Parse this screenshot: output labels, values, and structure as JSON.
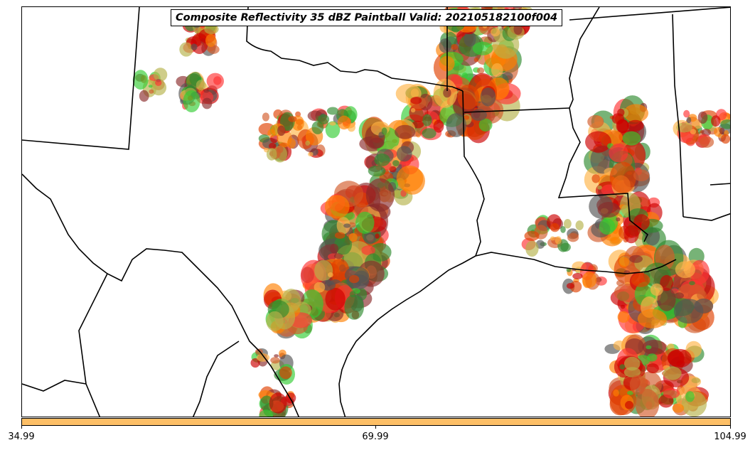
{
  "title": "Composite Reflectivity 35 dBZ Paintball Valid: 202105182100f004",
  "colorbar": {
    "color": "#fdbf66",
    "ticks": [
      "34.99",
      "69.99",
      "104.99"
    ]
  },
  "colors": {
    "border": "#000000",
    "paint": [
      "#ff8000",
      "#e04000",
      "#cc0000",
      "#ff3333",
      "#33cc33",
      "#2e8b2e",
      "#8b2b2b",
      "#b5b24a",
      "#ffb347",
      "#d25a2a",
      "#555555"
    ]
  }
}
